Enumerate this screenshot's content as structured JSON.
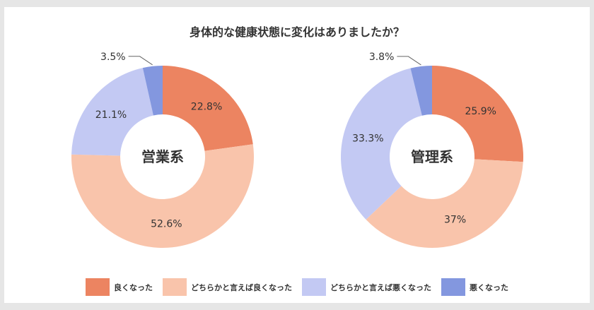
{
  "chart_data": {
    "type": "pie",
    "title": "身体的な健康状態に変化はありましたか？",
    "categories": [
      "良くなった",
      "どちらかと言えば良くなった",
      "どちらかと言えば悪くなった",
      "悪くなった"
    ],
    "colors": [
      "#ec8461",
      "#f9c4ab",
      "#c3c9f3",
      "#8397df"
    ],
    "charts": [
      {
        "name": "営業系",
        "values": [
          22.8,
          52.6,
          21.1,
          3.5
        ],
        "labels": [
          "22.8%",
          "52.6%",
          "21.1%",
          "3.5%"
        ]
      },
      {
        "name": "管理系",
        "values": [
          25.9,
          37,
          33.3,
          3.8
        ],
        "labels": [
          "25.9%",
          "37%",
          "33.3%",
          "3.8%"
        ]
      }
    ],
    "legend_position": "bottom"
  }
}
